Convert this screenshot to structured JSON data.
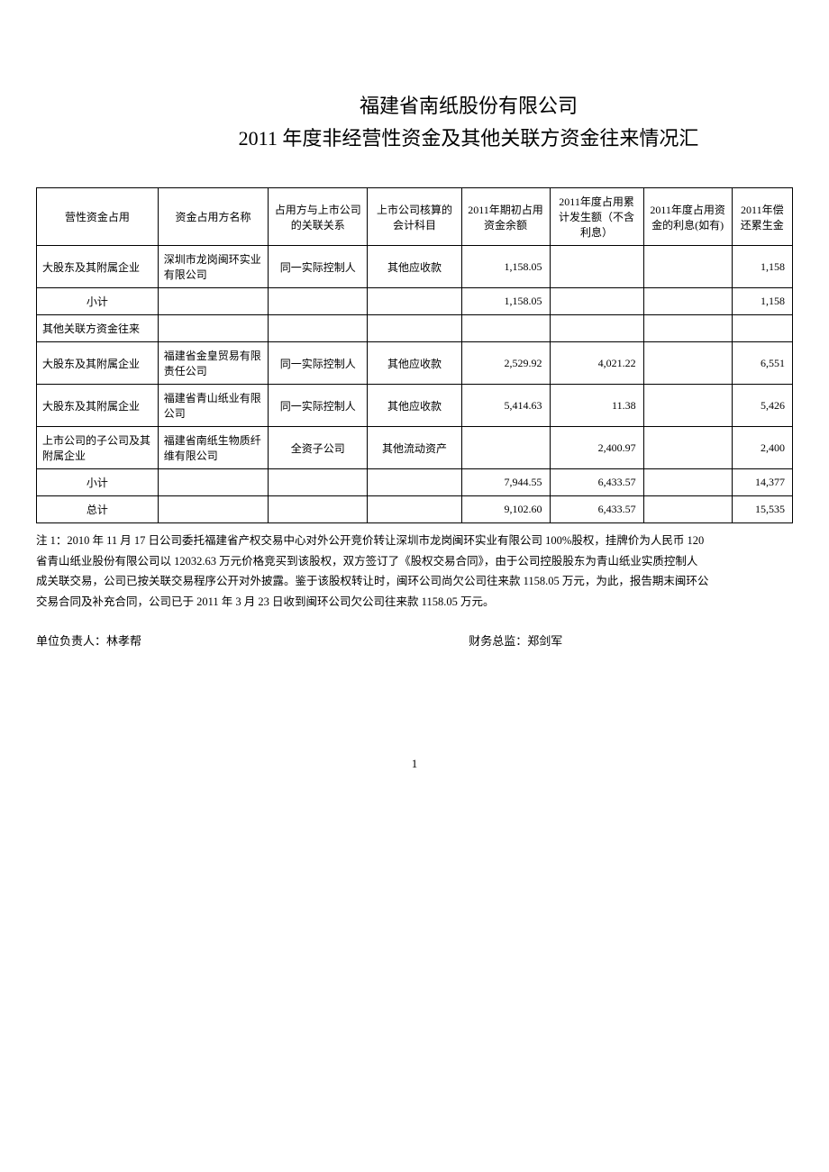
{
  "title": {
    "line1": "福建省南纸股份有限公司",
    "line2": "2011 年度非经营性资金及其他关联方资金往来情况汇"
  },
  "table": {
    "headers": [
      "营性资金占用",
      "资金占用方名称",
      "占用方与上市公司的关联关系",
      "上市公司核算的会计科目",
      "2011年期初占用资金余额",
      "2011年度占用累计发生额（不含利息）",
      "2011年度占用资金的利息(如有)",
      "2011年偿还累生金"
    ],
    "rows": [
      {
        "c0": "大股东及其附属企业",
        "c1": "深圳市龙岗闽环实业有限公司",
        "c2": "同一实际控制人",
        "c3": "其他应收款",
        "c4": "1,158.05",
        "c5": "",
        "c6": "",
        "c7": "1,158",
        "c0_class": "left-text",
        "c1_class": "left-text"
      },
      {
        "c0": "小计",
        "c1": "",
        "c2": "",
        "c3": "",
        "c4": "1,158.05",
        "c5": "",
        "c6": "",
        "c7": "1,158",
        "row_class": "subtotal-row"
      },
      {
        "c0": "其他关联方资金往来",
        "c1": "",
        "c2": "",
        "c3": "",
        "c4": "",
        "c5": "",
        "c6": "",
        "c7": "",
        "c0_class": "left-text",
        "row_class": "section-row"
      },
      {
        "c0": "大股东及其附属企业",
        "c1": "福建省金皇贸易有限责任公司",
        "c2": "同一实际控制人",
        "c3": "其他应收款",
        "c4": "2,529.92",
        "c5": "4,021.22",
        "c6": "",
        "c7": "6,551",
        "c0_class": "left-text",
        "c1_class": "left-text"
      },
      {
        "c0": "大股东及其附属企业",
        "c1": "福建省青山纸业有限公司",
        "c2": "同一实际控制人",
        "c3": "其他应收款",
        "c4": "5,414.63",
        "c5": "11.38",
        "c6": "",
        "c7": "5,426",
        "c0_class": "left-text",
        "c1_class": "left-text"
      },
      {
        "c0": "上市公司的子公司及其附属企业",
        "c1": "福建省南纸生物质纤维有限公司",
        "c2": "全资子公司",
        "c3": "其他流动资产",
        "c4": "",
        "c5": "2,400.97",
        "c6": "",
        "c7": "2,400",
        "c0_class": "left-text",
        "c1_class": "left-text"
      },
      {
        "c0": "小计",
        "c1": "",
        "c2": "",
        "c3": "",
        "c4": "7,944.55",
        "c5": "6,433.57",
        "c6": "",
        "c7": "14,377",
        "row_class": "subtotal-row"
      },
      {
        "c0": "总计",
        "c1": "",
        "c2": "",
        "c3": "",
        "c4": "9,102.60",
        "c5": "6,433.57",
        "c6": "",
        "c7": "15,535",
        "row_class": "subtotal-row"
      }
    ]
  },
  "notes": {
    "p1": "注 1：2010 年 11 月 17 日公司委托福建省产权交易中心对外公开竞价转让深圳市龙岗闽环实业有限公司 100%股权，挂牌价为人民币 120",
    "p2": "省青山纸业股份有限公司以 12032.63 万元价格竞买到该股权，双方签订了《股权交易合同》，由于公司控股股东为青山纸业实质控制人",
    "p3": "成关联交易，公司已按关联交易程序公开对外披露。鉴于该股权转让时，闽环公司尚欠公司往来款 1158.05 万元，为此，报告期末闽环公",
    "p4": "交易合同及补充合同，公司已于 2011 年 3 月 23 日收到闽环公司欠公司往来款 1158.05 万元。"
  },
  "signatures": {
    "left": "单位负责人：林孝帮",
    "right": "财务总监：郑剑军"
  },
  "pageNum": "1"
}
